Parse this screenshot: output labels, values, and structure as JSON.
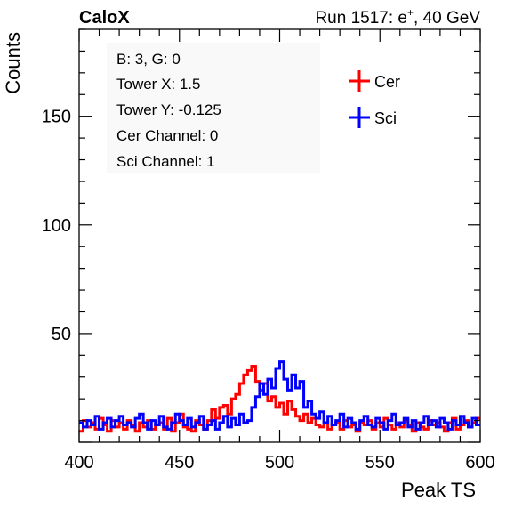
{
  "header": {
    "left_label": "CaloX",
    "run_text": "Run 1517: e",
    "run_sup": "+",
    "run_energy": ", 40 GeV"
  },
  "info_box": [
    "B: 3, G: 0",
    "Tower X: 1.5",
    "Tower Y: -0.125",
    "Cer Channel: 0",
    "Sci Channel: 1"
  ],
  "colors": {
    "cer": "#ff0000",
    "sci": "#0000ff",
    "axis": "#000000"
  },
  "chart_data": {
    "type": "line",
    "histogram_style": "step",
    "xlabel": "Peak TS",
    "ylabel": "Counts",
    "xlim": [
      400,
      600
    ],
    "ylim": [
      0,
      190
    ],
    "xticks": [
      400,
      450,
      500,
      550,
      600
    ],
    "yticks": [
      50,
      100,
      150
    ],
    "legend": {
      "placement": "top-right",
      "entries": [
        "Cer",
        "Sci"
      ]
    },
    "bin_width": 2,
    "x": [
      401,
      403,
      405,
      407,
      409,
      411,
      413,
      415,
      417,
      419,
      421,
      423,
      425,
      427,
      429,
      431,
      433,
      435,
      437,
      439,
      441,
      443,
      445,
      447,
      449,
      451,
      453,
      455,
      457,
      459,
      461,
      463,
      465,
      467,
      469,
      471,
      473,
      475,
      477,
      479,
      481,
      483,
      485,
      487,
      489,
      491,
      493,
      495,
      497,
      499,
      501,
      503,
      505,
      507,
      509,
      511,
      513,
      515,
      517,
      519,
      521,
      523,
      525,
      527,
      529,
      531,
      533,
      535,
      537,
      539,
      541,
      543,
      545,
      547,
      549,
      551,
      553,
      555,
      557,
      559,
      561,
      563,
      565,
      567,
      569,
      571,
      573,
      575,
      577,
      579,
      581,
      583,
      585,
      587,
      589,
      591,
      593,
      595,
      597,
      599
    ],
    "series": [
      {
        "name": "Cer",
        "values": [
          5,
          10,
          7,
          9,
          6,
          11,
          8,
          5,
          10,
          7,
          9,
          6,
          10,
          8,
          5,
          9,
          7,
          10,
          6,
          8,
          9,
          6,
          11,
          5,
          9,
          13,
          7,
          6,
          5,
          10,
          8,
          6,
          10,
          15,
          11,
          16,
          17,
          13,
          20,
          22,
          27,
          31,
          33,
          35,
          28,
          24,
          27,
          19,
          21,
          16,
          18,
          13,
          19,
          15,
          12,
          10,
          13,
          9,
          11,
          8,
          7,
          9,
          6,
          8,
          9,
          6,
          10,
          7,
          8,
          5,
          9,
          8,
          10,
          6,
          9,
          7,
          11,
          8,
          6,
          9,
          7,
          10,
          8,
          5,
          9,
          7,
          6,
          10,
          8,
          9,
          7,
          5,
          9,
          11,
          6,
          8,
          10,
          7,
          9,
          11
        ]
      },
      {
        "name": "Sci",
        "values": [
          9,
          7,
          10,
          8,
          12,
          6,
          9,
          11,
          7,
          10,
          12,
          8,
          9,
          7,
          11,
          13,
          9,
          6,
          10,
          8,
          12,
          7,
          6,
          9,
          13,
          10,
          8,
          11,
          7,
          9,
          12,
          6,
          8,
          10,
          6,
          9,
          12,
          7,
          11,
          8,
          13,
          9,
          10,
          16,
          21,
          27,
          22,
          29,
          25,
          34,
          37,
          29,
          24,
          31,
          25,
          28,
          16,
          19,
          13,
          11,
          14,
          9,
          12,
          8,
          10,
          13,
          7,
          11,
          9,
          6,
          10,
          12,
          8,
          7,
          11,
          9,
          6,
          10,
          13,
          8,
          9,
          11,
          7,
          10,
          6,
          9,
          12,
          8,
          10,
          7,
          11,
          9,
          6,
          10,
          8,
          12,
          9,
          7,
          11,
          8
        ]
      }
    ]
  }
}
